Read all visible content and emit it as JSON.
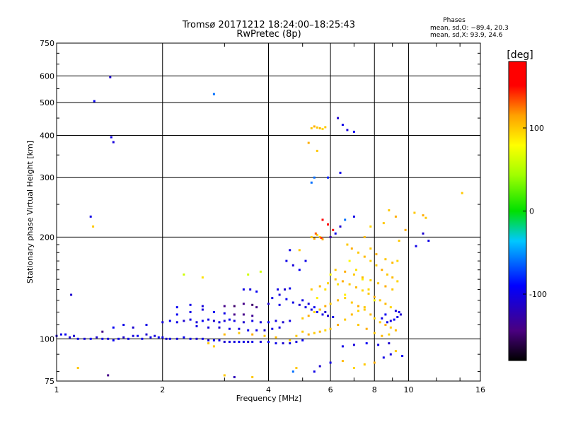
{
  "chart_data": {
    "type": "scatter",
    "title": "Tromsø 20171212 18:24:00–18:25:43",
    "subtitle": "RwPretec (8p)",
    "info": {
      "title": "Phases",
      "line1": "mean, sd,O: −89.4, 20.3",
      "line2": "mean, sd,X:  93.9, 24.6"
    },
    "xlabel": "Frequency [MHz]",
    "ylabel": "Stationary phase Virtual Height [km]",
    "x_scale": "log",
    "y_scale": "log",
    "xlim": [
      1,
      16
    ],
    "ylim": [
      75,
      750
    ],
    "x_ticks": [
      1,
      2,
      4,
      6,
      8,
      10,
      16
    ],
    "y_ticks": [
      75,
      100,
      200,
      300,
      400,
      500,
      600,
      750
    ],
    "grid": true,
    "colorbar": {
      "label": "[deg]",
      "range": [
        -180,
        180
      ],
      "ticks": [
        100,
        0,
        -100
      ]
    },
    "points": [
      [
        1.0,
        102,
        -110
      ],
      [
        1.03,
        103,
        -100
      ],
      [
        1.06,
        103,
        -95
      ],
      [
        1.09,
        101,
        -105
      ],
      [
        1.12,
        102,
        -110
      ],
      [
        1.15,
        100,
        -100
      ],
      [
        1.2,
        100,
        -105
      ],
      [
        1.25,
        100,
        -95
      ],
      [
        1.3,
        101,
        -110
      ],
      [
        1.35,
        100,
        -100
      ],
      [
        1.4,
        100,
        -105
      ],
      [
        1.45,
        99,
        -95
      ],
      [
        1.5,
        100,
        -100
      ],
      [
        1.55,
        101,
        -110
      ],
      [
        1.6,
        100,
        -100
      ],
      [
        1.65,
        102,
        -105
      ],
      [
        1.7,
        102,
        -95
      ],
      [
        1.75,
        100,
        -100
      ],
      [
        1.8,
        103,
        -110
      ],
      [
        1.85,
        101,
        -100
      ],
      [
        1.9,
        102,
        -105
      ],
      [
        1.95,
        101,
        -95
      ],
      [
        2.0,
        101,
        -100
      ],
      [
        2.05,
        100,
        -110
      ],
      [
        2.1,
        100,
        -100
      ],
      [
        2.2,
        100,
        -105
      ],
      [
        2.3,
        101,
        -95
      ],
      [
        2.4,
        100,
        -100
      ],
      [
        2.5,
        100,
        -110
      ],
      [
        2.6,
        100,
        -100
      ],
      [
        2.7,
        99,
        -105
      ],
      [
        2.8,
        99,
        -95
      ],
      [
        2.9,
        99,
        -100
      ],
      [
        3.0,
        98,
        -110
      ],
      [
        3.1,
        98,
        -100
      ],
      [
        3.2,
        98,
        -105
      ],
      [
        3.3,
        98,
        -95
      ],
      [
        3.4,
        98,
        -100
      ],
      [
        3.5,
        98,
        -110
      ],
      [
        3.6,
        98,
        -100
      ],
      [
        3.8,
        98,
        -105
      ],
      [
        4.0,
        98,
        -95
      ],
      [
        4.2,
        97,
        -100
      ],
      [
        4.4,
        97,
        -110
      ],
      [
        4.6,
        97,
        -100
      ],
      [
        4.8,
        98,
        -105
      ],
      [
        5.0,
        99,
        -95
      ],
      [
        1.35,
        105,
        -140
      ],
      [
        1.45,
        108,
        -95
      ],
      [
        1.55,
        110,
        -100
      ],
      [
        1.65,
        108,
        -110
      ],
      [
        1.8,
        110,
        -100
      ],
      [
        2.0,
        112,
        -105
      ],
      [
        2.1,
        113,
        -95
      ],
      [
        2.2,
        112,
        -100
      ],
      [
        2.3,
        113,
        -110
      ],
      [
        2.4,
        114,
        -100
      ],
      [
        2.5,
        112,
        -105
      ],
      [
        2.6,
        113,
        -95
      ],
      [
        2.7,
        114,
        -100
      ],
      [
        2.8,
        113,
        -110
      ],
      [
        2.9,
        112,
        -100
      ],
      [
        3.0,
        113,
        -105
      ],
      [
        3.1,
        114,
        -95
      ],
      [
        3.2,
        113,
        -100
      ],
      [
        3.4,
        112,
        -110
      ],
      [
        3.6,
        113,
        -100
      ],
      [
        3.8,
        112,
        -105
      ],
      [
        4.0,
        112,
        -95
      ],
      [
        4.2,
        113,
        -100
      ],
      [
        4.4,
        112,
        -110
      ],
      [
        4.6,
        113,
        -100
      ],
      [
        2.2,
        118,
        -95
      ],
      [
        2.4,
        120,
        -100
      ],
      [
        2.6,
        122,
        -105
      ],
      [
        2.8,
        120,
        -95
      ],
      [
        3.0,
        119,
        -100
      ],
      [
        3.2,
        118,
        -140
      ],
      [
        3.4,
        118,
        -140
      ],
      [
        3.6,
        117,
        -135
      ],
      [
        2.5,
        109,
        -100
      ],
      [
        2.7,
        108,
        -105
      ],
      [
        2.9,
        108,
        -110
      ],
      [
        3.1,
        107,
        -100
      ],
      [
        3.3,
        107,
        -105
      ],
      [
        3.5,
        106,
        -95
      ],
      [
        3.7,
        106,
        -100
      ],
      [
        3.9,
        106,
        -110
      ],
      [
        4.1,
        107,
        -100
      ],
      [
        4.3,
        108,
        -105
      ],
      [
        3.4,
        140,
        -100
      ],
      [
        3.55,
        140,
        -105
      ],
      [
        3.7,
        138,
        -95
      ],
      [
        4.25,
        140,
        -100
      ],
      [
        4.45,
        140,
        -110
      ],
      [
        4.6,
        141,
        -100
      ],
      [
        4.1,
        132,
        -100
      ],
      [
        4.3,
        135,
        -105
      ],
      [
        4.5,
        131,
        -95
      ],
      [
        4.7,
        128,
        -100
      ],
      [
        4.9,
        126,
        -110
      ],
      [
        5.1,
        124,
        -100
      ],
      [
        5.3,
        122,
        -105
      ],
      [
        5.5,
        120,
        -95
      ],
      [
        5.7,
        118,
        -100
      ],
      [
        5.9,
        117,
        -110
      ],
      [
        6.1,
        116,
        -100
      ],
      [
        5.0,
        130,
        -100
      ],
      [
        5.2,
        127,
        -105
      ],
      [
        5.4,
        124,
        -95
      ],
      [
        5.6,
        122,
        -100
      ],
      [
        5.8,
        120,
        -110
      ],
      [
        5.0,
        115,
        100
      ],
      [
        5.2,
        117,
        110
      ],
      [
        5.4,
        120,
        95
      ],
      [
        5.6,
        122,
        100
      ],
      [
        5.8,
        125,
        110
      ],
      [
        6.0,
        127,
        100
      ],
      [
        6.3,
        130,
        105
      ],
      [
        6.6,
        132,
        95
      ],
      [
        6.9,
        128,
        100
      ],
      [
        7.2,
        125,
        110
      ],
      [
        7.5,
        122,
        100
      ],
      [
        7.8,
        118,
        105
      ],
      [
        8.0,
        115,
        95
      ],
      [
        8.3,
        112,
        100
      ],
      [
        8.6,
        110,
        110
      ],
      [
        8.9,
        108,
        100
      ],
      [
        9.2,
        106,
        105
      ],
      [
        5.2,
        103,
        110
      ],
      [
        5.4,
        104,
        100
      ],
      [
        5.6,
        105,
        105
      ],
      [
        5.8,
        106,
        95
      ],
      [
        6.0,
        107,
        100
      ],
      [
        6.3,
        110,
        110
      ],
      [
        6.6,
        114,
        100
      ],
      [
        6.9,
        118,
        105
      ],
      [
        7.2,
        121,
        95
      ],
      [
        7.5,
        124,
        100
      ],
      [
        5.3,
        140,
        100
      ],
      [
        5.6,
        143,
        105
      ],
      [
        5.9,
        146,
        95
      ],
      [
        6.2,
        150,
        100
      ],
      [
        6.5,
        148,
        110
      ],
      [
        6.8,
        145,
        100
      ],
      [
        7.1,
        142,
        105
      ],
      [
        7.4,
        139,
        95
      ],
      [
        7.7,
        136,
        100
      ],
      [
        8.0,
        133,
        110
      ],
      [
        8.3,
        130,
        100
      ],
      [
        8.6,
        127,
        105
      ],
      [
        8.9,
        124,
        95
      ],
      [
        6.2,
        160,
        100
      ],
      [
        6.6,
        158,
        110
      ],
      [
        7.0,
        155,
        100
      ],
      [
        7.4,
        152,
        105
      ],
      [
        7.8,
        149,
        95
      ],
      [
        8.2,
        146,
        100
      ],
      [
        8.6,
        143,
        110
      ],
      [
        9.0,
        140,
        100
      ],
      [
        8.7,
        112,
        -100
      ],
      [
        8.9,
        113,
        -105
      ],
      [
        9.1,
        114,
        -95
      ],
      [
        9.3,
        116,
        -100
      ],
      [
        9.5,
        118,
        -110
      ],
      [
        9.4,
        120,
        -100
      ],
      [
        9.2,
        121,
        -105
      ],
      [
        8.6,
        118,
        -95
      ],
      [
        8.4,
        115,
        -100
      ],
      [
        5.3,
        200,
        100
      ],
      [
        5.4,
        198,
        110
      ],
      [
        5.5,
        203,
        95
      ],
      [
        5.6,
        200,
        100
      ],
      [
        5.7,
        197,
        110
      ],
      [
        5.45,
        205,
        130
      ],
      [
        5.65,
        199,
        140
      ],
      [
        5.7,
        225,
        160
      ],
      [
        5.9,
        218,
        170
      ],
      [
        6.1,
        210,
        150
      ],
      [
        6.7,
        190,
        100
      ],
      [
        6.9,
        185,
        110
      ],
      [
        7.2,
        180,
        100
      ],
      [
        7.5,
        175,
        105
      ],
      [
        7.8,
        170,
        95
      ],
      [
        8.1,
        165,
        100
      ],
      [
        8.4,
        160,
        110
      ],
      [
        8.7,
        155,
        100
      ],
      [
        9.0,
        152,
        105
      ],
      [
        9.3,
        148,
        95
      ],
      [
        8.8,
        240,
        100
      ],
      [
        9.2,
        230,
        110
      ],
      [
        8.5,
        220,
        100
      ],
      [
        7.5,
        200,
        105
      ],
      [
        7.8,
        215,
        95
      ],
      [
        5.3,
        420,
        100
      ],
      [
        5.4,
        425,
        110
      ],
      [
        5.5,
        422,
        100
      ],
      [
        5.6,
        420,
        105
      ],
      [
        5.7,
        418,
        95
      ],
      [
        5.8,
        423,
        100
      ],
      [
        5.2,
        380,
        110
      ],
      [
        5.5,
        360,
        100
      ],
      [
        6.3,
        450,
        -110
      ],
      [
        6.5,
        430,
        -100
      ],
      [
        6.7,
        415,
        -105
      ],
      [
        7.0,
        410,
        -95
      ],
      [
        6.4,
        310,
        -100
      ],
      [
        5.4,
        300,
        -60
      ],
      [
        5.3,
        290,
        -60
      ],
      [
        5.9,
        300,
        -80
      ],
      [
        4.5,
        170,
        -100
      ],
      [
        4.7,
        165,
        -105
      ],
      [
        4.9,
        160,
        -95
      ],
      [
        4.6,
        183,
        -100
      ],
      [
        1.1,
        135,
        -110
      ],
      [
        1.25,
        230,
        -100
      ],
      [
        1.27,
        215,
        100
      ],
      [
        1.42,
        595,
        -110
      ],
      [
        1.43,
        395,
        -100
      ],
      [
        1.45,
        382,
        -105
      ],
      [
        1.28,
        505,
        -95
      ],
      [
        2.8,
        530,
        -60
      ],
      [
        1.4,
        78,
        -140
      ],
      [
        1.15,
        82,
        100
      ],
      [
        3.6,
        77,
        100
      ],
      [
        3.2,
        77,
        -120
      ],
      [
        3.0,
        78,
        100
      ],
      [
        4.7,
        80,
        -60
      ],
      [
        4.8,
        82,
        100
      ],
      [
        5.4,
        80,
        -100
      ],
      [
        5.6,
        83,
        -110
      ],
      [
        6.0,
        85,
        -100
      ],
      [
        6.5,
        86,
        105
      ],
      [
        7.0,
        82,
        95
      ],
      [
        7.5,
        84,
        100
      ],
      [
        8.0,
        85,
        110
      ],
      [
        8.5,
        88,
        -100
      ],
      [
        8.9,
        90,
        -105
      ],
      [
        9.2,
        92,
        100
      ],
      [
        9.6,
        89,
        -95
      ],
      [
        10.5,
        188,
        -100
      ],
      [
        11.0,
        205,
        -110
      ],
      [
        11.4,
        195,
        -100
      ],
      [
        11.2,
        228,
        100
      ],
      [
        11.0,
        232,
        110
      ],
      [
        14.2,
        270,
        100
      ],
      [
        10.4,
        236,
        100
      ],
      [
        9.8,
        210,
        110
      ],
      [
        9.4,
        195,
        100
      ],
      [
        2.3,
        155,
        60
      ],
      [
        2.6,
        152,
        90
      ],
      [
        3.5,
        155,
        60
      ],
      [
        3.8,
        158,
        60
      ],
      [
        4.9,
        183,
        100
      ],
      [
        5.1,
        170,
        -100
      ],
      [
        6.0,
        200,
        -130
      ],
      [
        6.4,
        215,
        -110
      ],
      [
        6.6,
        225,
        -60
      ],
      [
        7.0,
        230,
        -100
      ],
      [
        6.2,
        205,
        -100
      ],
      [
        3.0,
        125,
        -140
      ],
      [
        3.2,
        125,
        -150
      ],
      [
        3.4,
        127,
        -140
      ],
      [
        3.6,
        126,
        -150
      ],
      [
        3.7,
        124,
        -140
      ],
      [
        2.4,
        126,
        -100
      ],
      [
        2.6,
        125,
        -105
      ],
      [
        2.2,
        124,
        -95
      ],
      [
        4.0,
        127,
        -110
      ],
      [
        4.3,
        126,
        -100
      ],
      [
        5.0,
        105,
        100
      ],
      [
        4.8,
        102,
        100
      ],
      [
        4.6,
        99,
        100
      ],
      [
        2.7,
        97,
        100
      ],
      [
        2.8,
        95,
        100
      ],
      [
        3.0,
        103,
        105
      ],
      [
        3.3,
        104,
        100
      ],
      [
        3.6,
        103,
        110
      ],
      [
        3.9,
        102,
        100
      ],
      [
        4.2,
        101,
        105
      ],
      [
        7.2,
        110,
        100
      ],
      [
        7.6,
        107,
        110
      ],
      [
        8.0,
        104,
        100
      ],
      [
        8.4,
        102,
        105
      ],
      [
        8.8,
        103,
        95
      ],
      [
        6.5,
        95,
        -100
      ],
      [
        7.0,
        96,
        -105
      ],
      [
        7.6,
        97,
        -95
      ],
      [
        8.2,
        96,
        -100
      ],
      [
        8.8,
        97,
        -110
      ],
      [
        7.8,
        185,
        100
      ],
      [
        8.1,
        178,
        110
      ],
      [
        8.6,
        172,
        100
      ],
      [
        9.0,
        168,
        105
      ],
      [
        9.3,
        170,
        95
      ],
      [
        6.8,
        170,
        80
      ],
      [
        7.1,
        160,
        90
      ],
      [
        7.4,
        150,
        85
      ],
      [
        7.7,
        140,
        95
      ],
      [
        8.0,
        130,
        80
      ],
      [
        6.0,
        155,
        80
      ],
      [
        6.3,
        145,
        90
      ],
      [
        6.6,
        135,
        85
      ],
      [
        5.8,
        140,
        90
      ],
      [
        5.5,
        132,
        85
      ]
    ]
  }
}
